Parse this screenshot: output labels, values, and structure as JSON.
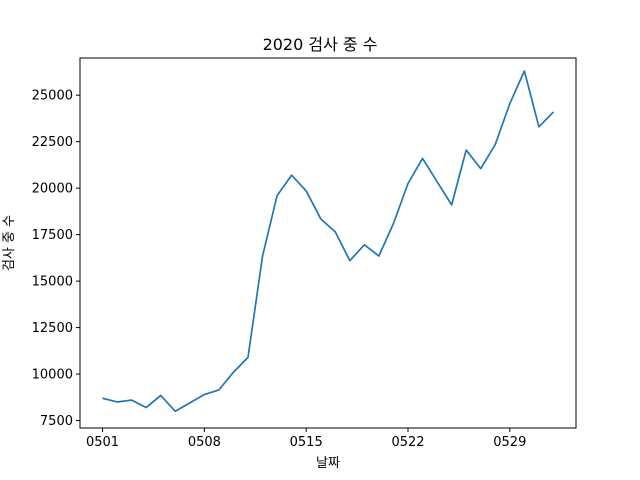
{
  "chart_data": {
    "type": "line",
    "title": "2020 검사 중 수",
    "xlabel": "날짜",
    "ylabel": "검사 중 수",
    "x_ticks": [
      "0501",
      "0508",
      "0515",
      "0522",
      "0529"
    ],
    "y_ticks": [
      7500,
      10000,
      12500,
      15000,
      17500,
      20000,
      22500,
      25000
    ],
    "xlim": [
      0.0,
      31.0
    ],
    "ylim": [
      7000,
      27000
    ],
    "grid": false,
    "series": [
      {
        "color": "#1f77b4",
        "x": [
          "0501",
          "0502",
          "0503",
          "0504",
          "0505",
          "0506",
          "0507",
          "0508",
          "0509",
          "0510",
          "0511",
          "0512",
          "0513",
          "0514",
          "0515",
          "0516",
          "0517",
          "0518",
          "0519",
          "0520",
          "0521",
          "0522",
          "0523",
          "0524",
          "0525",
          "0526",
          "0527",
          "0528",
          "0529",
          "0530",
          "0531",
          "0601"
        ],
        "values": [
          8700,
          8500,
          8600,
          8200,
          8850,
          8000,
          8450,
          8900,
          9150,
          10100,
          10900,
          16350,
          19600,
          20700,
          19850,
          18350,
          17650,
          16100,
          16950,
          16350,
          18100,
          20250,
          21600,
          20350,
          19100,
          22050,
          21050,
          22350,
          24550,
          26300,
          23300,
          24100
        ]
      }
    ]
  }
}
